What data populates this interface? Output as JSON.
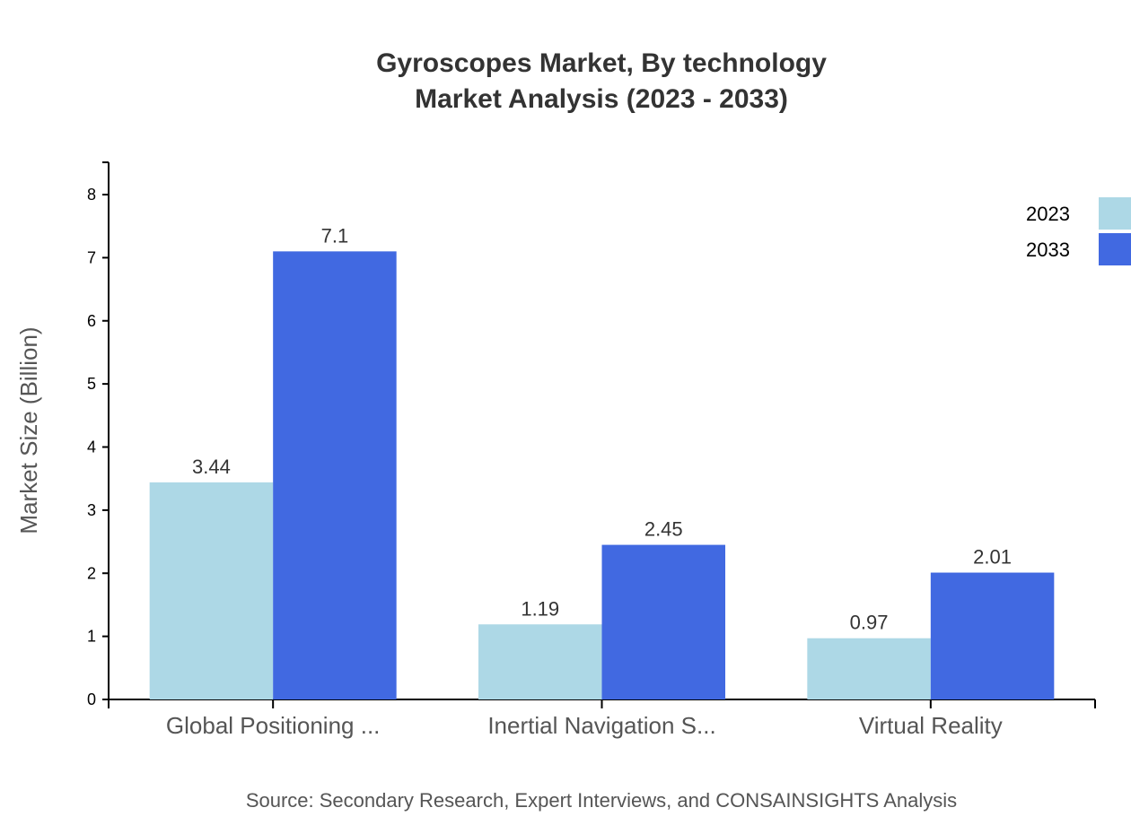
{
  "chart_data": {
    "type": "bar",
    "title": "Gyroscopes Market, By technology",
    "subtitle": "Market Analysis (2023 - 2033)",
    "xlabel": "",
    "ylabel": "Market Size (Billion)",
    "ylim": [
      0,
      8.5
    ],
    "yticks": [
      0,
      1,
      2,
      3,
      4,
      5,
      6,
      7,
      8
    ],
    "categories": [
      "Global Positioning ...",
      "Inertial Navigation S...",
      "Virtual Reality"
    ],
    "series": [
      {
        "name": "2023",
        "color": "#add8e6",
        "values": [
          3.44,
          1.19,
          0.97
        ]
      },
      {
        "name": "2033",
        "color": "#4169e1",
        "values": [
          7.1,
          2.45,
          2.01
        ]
      }
    ],
    "grid": false,
    "legend": "top-right",
    "source": "Source: Secondary Research, Expert Interviews, and CONSAINSIGHTS Analysis"
  }
}
